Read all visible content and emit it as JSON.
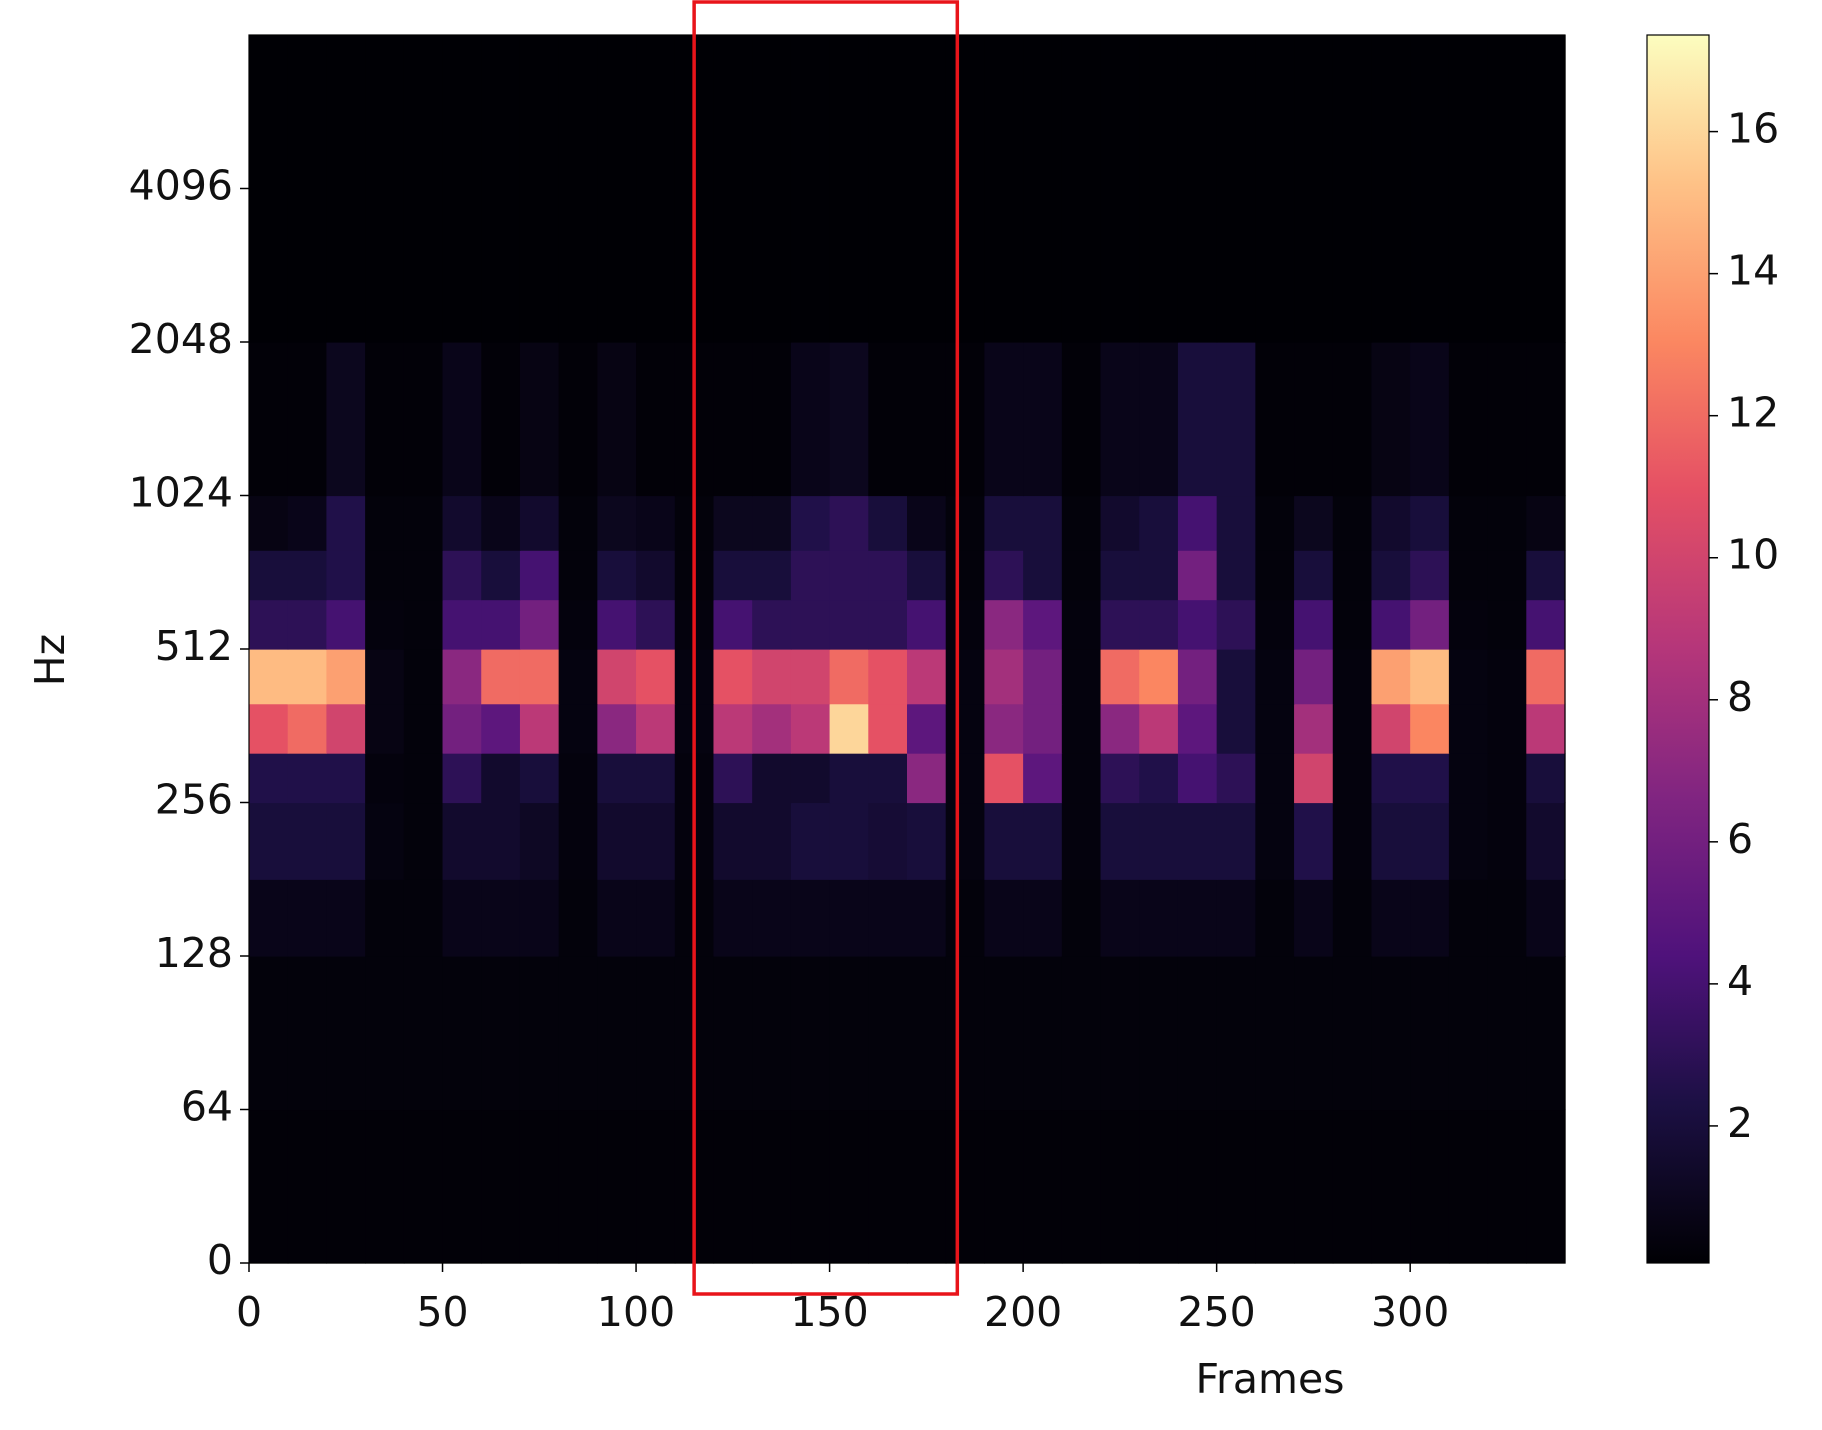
{
  "chart_data": {
    "type": "heatmap",
    "xlabel": "Frames",
    "ylabel": "Hz",
    "xlim": [
      0,
      340
    ],
    "xticks": [
      0,
      50,
      100,
      150,
      200,
      250,
      300
    ],
    "ylim": [
      0,
      8192
    ],
    "yscale": "mel",
    "yticks": [
      0,
      64,
      128,
      256,
      512,
      1024,
      2048,
      4096
    ],
    "colormap": "magma",
    "clim": [
      0.07,
      17.36
    ],
    "cticks": [
      2,
      4,
      6,
      8,
      10,
      12,
      14,
      16
    ],
    "x_bins": [
      0,
      10,
      20,
      30,
      40,
      50,
      60,
      70,
      80,
      90,
      100,
      110,
      120,
      130,
      140,
      150,
      160,
      170,
      180,
      190,
      200,
      210,
      220,
      230,
      240,
      250,
      260,
      270,
      280,
      290,
      300,
      310,
      320,
      330,
      340
    ],
    "y_bins": [
      0,
      64,
      128,
      181,
      256,
      320,
      400,
      512,
      640,
      800,
      1024,
      2048,
      8192
    ],
    "z": [
      [
        0.2,
        0.2,
        0.2,
        0.2,
        0.2,
        0.2,
        0.2,
        0.2,
        0.2,
        0.2,
        0.2,
        0.2,
        0.2,
        0.2,
        0.2,
        0.2,
        0.2,
        0.2,
        0.2,
        0.2,
        0.2,
        0.2,
        0.2,
        0.2,
        0.2,
        0.2,
        0.2,
        0.2,
        0.2,
        0.2,
        0.2,
        0.2,
        0.2,
        0.2
      ],
      [
        0.3,
        0.3,
        0.3,
        0.3,
        0.3,
        0.3,
        0.3,
        0.3,
        0.3,
        0.3,
        0.3,
        0.3,
        0.3,
        0.3,
        0.3,
        0.3,
        0.3,
        0.3,
        0.3,
        0.3,
        0.3,
        0.3,
        0.3,
        0.3,
        0.3,
        0.3,
        0.3,
        0.3,
        0.3,
        0.3,
        0.3,
        0.3,
        0.3,
        0.3
      ],
      [
        0.8,
        0.8,
        0.8,
        0.3,
        0.3,
        0.8,
        0.8,
        0.8,
        0.3,
        0.8,
        0.8,
        0.3,
        0.8,
        0.8,
        0.8,
        0.8,
        0.8,
        0.8,
        0.3,
        0.8,
        0.8,
        0.3,
        0.8,
        0.8,
        0.8,
        0.8,
        0.3,
        0.8,
        0.3,
        0.8,
        0.8,
        0.3,
        0.3,
        0.8
      ],
      [
        2,
        2,
        2,
        0.5,
        0.3,
        1.5,
        1.5,
        1.2,
        0.4,
        1.5,
        1.5,
        0.4,
        1.5,
        1.5,
        2,
        2,
        1.8,
        2,
        0.5,
        2,
        2,
        0.4,
        2,
        2,
        2,
        2,
        0.5,
        2.5,
        0.4,
        2,
        2,
        0.5,
        0.4,
        1.5
      ],
      [
        2.5,
        2.5,
        2.5,
        0.4,
        0.3,
        3,
        1.5,
        2,
        0.4,
        2,
        2,
        0.4,
        3,
        1.5,
        1.5,
        2,
        2,
        7,
        0.5,
        11,
        5,
        0.4,
        3,
        2.5,
        4,
        3,
        0.5,
        10,
        0.4,
        2.5,
        2.5,
        0.5,
        0.4,
        2
      ],
      [
        11,
        12,
        10,
        0.6,
        0.3,
        6,
        5,
        9,
        0.5,
        7,
        9,
        0.5,
        9,
        8,
        9,
        16,
        11,
        5,
        0.5,
        7,
        6,
        0.4,
        7,
        9,
        5,
        2,
        0.5,
        8,
        0.4,
        10,
        13,
        0.5,
        0.4,
        9
      ],
      [
        15,
        15,
        14,
        0.6,
        0.3,
        7,
        12,
        12,
        0.5,
        10,
        11,
        0.5,
        11,
        10,
        10,
        12,
        11,
        9,
        0.5,
        8,
        6,
        0.4,
        12,
        13,
        6,
        2,
        0.5,
        6,
        0.4,
        14,
        15,
        0.5,
        0.4,
        12
      ],
      [
        3,
        3,
        4,
        0.4,
        0.3,
        4,
        4,
        6,
        0.4,
        4,
        3,
        0.4,
        4,
        3,
        3,
        3,
        3,
        4,
        0.4,
        7,
        5,
        0.4,
        3,
        3,
        4,
        3,
        0.4,
        4,
        0.3,
        4,
        6,
        0.4,
        0.3,
        4
      ],
      [
        2,
        2,
        2.5,
        0.3,
        0.3,
        3,
        2,
        4,
        0.3,
        2,
        1.5,
        0.3,
        2,
        2,
        3,
        3,
        3,
        2,
        0.3,
        3,
        2,
        0.3,
        2,
        2,
        6,
        2,
        0.3,
        2,
        0.3,
        2,
        3,
        0.3,
        0.3,
        2
      ],
      [
        0.6,
        0.8,
        2.5,
        0.3,
        0.3,
        1.5,
        0.8,
        1.5,
        0.3,
        1,
        0.8,
        0.3,
        1,
        1,
        2.5,
        3,
        2,
        0.8,
        0.3,
        2,
        2,
        0.3,
        1.5,
        2,
        4,
        2,
        0.3,
        1,
        0.3,
        1.5,
        2,
        0.3,
        0.3,
        0.6
      ],
      [
        0.2,
        0.2,
        1,
        0.2,
        0.2,
        0.8,
        0.2,
        0.6,
        0.2,
        0.6,
        0.2,
        0.2,
        0.2,
        0.2,
        0.8,
        1,
        0.2,
        0.2,
        0.2,
        0.8,
        0.8,
        0.2,
        0.8,
        0.8,
        2,
        2,
        0.2,
        0.2,
        0.2,
        0.6,
        0.8,
        0.2,
        0.2,
        0.2
      ],
      [
        0.1,
        0.1,
        0.1,
        0.1,
        0.1,
        0.1,
        0.1,
        0.1,
        0.1,
        0.1,
        0.1,
        0.1,
        0.1,
        0.1,
        0.1,
        0.1,
        0.1,
        0.1,
        0.1,
        0.1,
        0.1,
        0.1,
        0.1,
        0.1,
        0.1,
        0.1,
        0.1,
        0.1,
        0.1,
        0.1,
        0.1,
        0.1,
        0.1,
        0.1
      ]
    ],
    "highlight": {
      "x": [
        115,
        183
      ],
      "color": "#e8141a"
    }
  }
}
